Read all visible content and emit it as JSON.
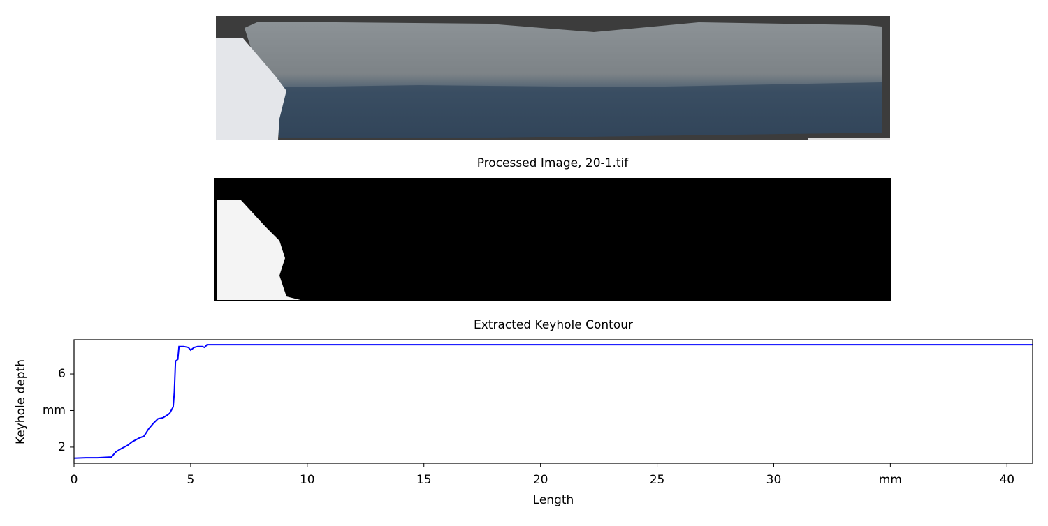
{
  "panels": {
    "processed_image": {
      "title": "Processed Image, 20-1.tif"
    }
  },
  "chart_data": {
    "type": "line",
    "title": "Extracted Keyhole Contour",
    "xlabel": "Length",
    "ylabel": "Keyhole depth",
    "x": [
      0,
      0.5,
      1,
      1.5,
      1.6,
      1.8,
      2,
      2.3,
      2.5,
      2.8,
      3,
      3.2,
      3.4,
      3.6,
      3.8,
      4,
      4.1,
      4.25,
      4.3,
      4.35,
      4.45,
      4.5,
      4.7,
      4.9,
      5,
      5.15,
      5.3,
      5.5,
      5.6,
      5.7,
      6,
      41.1
    ],
    "values": [
      1.4,
      1.42,
      1.42,
      1.45,
      1.45,
      1.75,
      1.9,
      2.1,
      2.3,
      2.5,
      2.6,
      3.0,
      3.3,
      3.55,
      3.6,
      3.75,
      3.85,
      4.2,
      5.0,
      6.7,
      6.8,
      7.5,
      7.5,
      7.45,
      7.3,
      7.45,
      7.5,
      7.5,
      7.45,
      7.6,
      7.6,
      7.6
    ],
    "color": "#0000ff",
    "xlim": [
      0,
      41.1
    ],
    "ylim": [
      1.12,
      7.87
    ],
    "xticks": [
      0,
      5,
      10,
      15,
      20,
      25,
      30,
      {
        "value": 35,
        "label": "mm"
      },
      40
    ],
    "yticks": [
      2,
      {
        "value": 4,
        "label": "mm"
      },
      6
    ]
  }
}
